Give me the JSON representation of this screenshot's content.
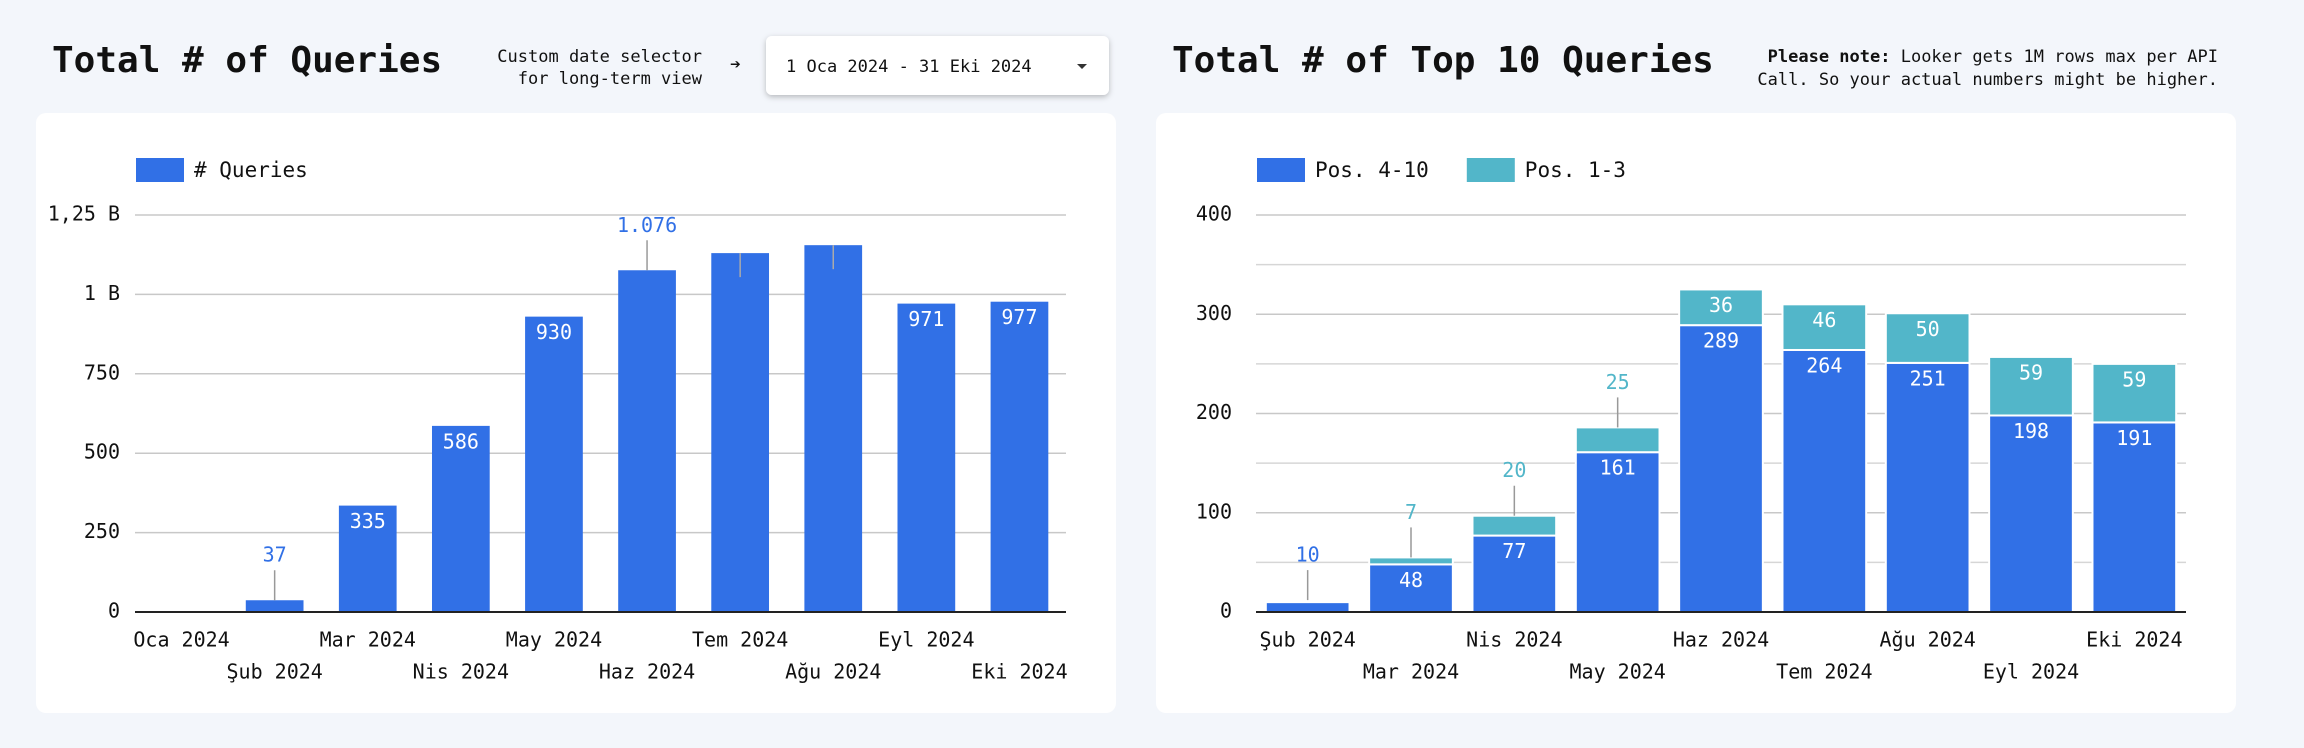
{
  "header": {
    "left_title": "Total # of Queries",
    "date_note": [
      "Custom date selector",
      "for long-term view"
    ],
    "date_range": "1 Oca 2024 - 31 Eki 2024",
    "right_title": "Total # of Top 10 Queries",
    "note_label": "Please note:",
    "note_text": [
      "Looker gets 1M rows max per API",
      "Call. So your actual numbers might be higher."
    ]
  },
  "chart_data": [
    {
      "type": "bar",
      "stacked": false,
      "legend": "top-left",
      "grid": true,
      "categories": [
        "Oca 2024",
        "Şub 2024",
        "Mar 2024",
        "Nis 2024",
        "May 2024",
        "Haz 2024",
        "Tem 2024",
        "Ağu 2024",
        "Eyl 2024",
        "Eki 2024"
      ],
      "series": [
        {
          "name": "# Queries",
          "color": "#3170e6",
          "values": [
            0,
            37,
            335,
            586,
            930,
            1076,
            1130,
            1155,
            971,
            977
          ],
          "value_labels": [
            null,
            "37",
            "335",
            "586",
            "930",
            "1.076",
            null,
            null,
            "971",
            "977"
          ]
        }
      ],
      "ylim": [
        0,
        1250
      ],
      "yticks": [
        0,
        250,
        500,
        750,
        {
          "value": 1000,
          "label": "1 B"
        },
        {
          "value": 1250,
          "label": "1,25 B"
        }
      ]
    },
    {
      "type": "bar",
      "stacked": true,
      "legend": "top-left",
      "grid": true,
      "categories": [
        "Şub 2024",
        "Mar 2024",
        "Nis 2024",
        "May 2024",
        "Haz 2024",
        "Tem 2024",
        "Ağu 2024",
        "Eyl 2024",
        "Eki 2024"
      ],
      "series": [
        {
          "name": "Pos. 4-10",
          "color": "#3170e6",
          "values": [
            10,
            48,
            77,
            161,
            289,
            264,
            251,
            198,
            191
          ],
          "value_labels": [
            "10",
            "48",
            "77",
            "161",
            "289",
            "264",
            "251",
            "198",
            "191"
          ]
        },
        {
          "name": "Pos. 1-3",
          "color": "#52b6c9",
          "values": [
            2,
            7,
            20,
            25,
            36,
            46,
            50,
            59,
            59
          ],
          "value_labels": [
            null,
            "7",
            "20",
            "25",
            "36",
            "46",
            "50",
            "59",
            "59"
          ]
        }
      ],
      "ylim": [
        0,
        400
      ],
      "yticks": [
        0,
        100,
        200,
        300,
        400
      ],
      "minor_yticks": [
        50,
        150,
        250,
        350
      ]
    }
  ]
}
